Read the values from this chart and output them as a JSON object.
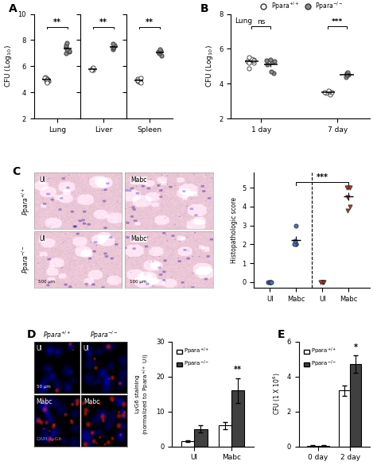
{
  "panel_A": {
    "ylabel": "CFU (Log$_{10}$)",
    "ylim": [
      2,
      10
    ],
    "yticks": [
      2,
      4,
      6,
      8,
      10
    ],
    "groups": [
      "Lung",
      "Liver",
      "Spleen"
    ],
    "wt_data": {
      "Lung": [
        4.85,
        4.9,
        5.0,
        5.05,
        5.1,
        5.15,
        5.1,
        4.95,
        5.0,
        4.75
      ],
      "Liver": [
        5.7,
        5.8,
        5.85,
        5.9,
        5.75
      ],
      "Spleen": [
        4.8,
        4.85,
        4.9,
        5.0,
        5.05,
        4.95,
        4.75,
        5.1
      ]
    },
    "ko_data": {
      "Lung": [
        7.0,
        7.1,
        7.2,
        7.3,
        7.5,
        7.6,
        7.8
      ],
      "Liver": [
        7.3,
        7.4,
        7.5,
        7.6,
        7.7
      ],
      "Spleen": [
        6.8,
        7.0,
        7.1,
        7.2,
        7.3
      ]
    },
    "sig": [
      "**",
      "**",
      "**"
    ],
    "legend_wt": "Ppara$^{+/+}$",
    "legend_ko": "Ppara$^{-/-}$"
  },
  "panel_B": {
    "ylabel": "CFU (Log$_{10}$)",
    "ylim": [
      2,
      8
    ],
    "yticks": [
      2,
      4,
      6,
      8
    ],
    "xlabel_inner": "Lung",
    "groups": [
      "1 day",
      "7 day"
    ],
    "wt_data": {
      "1 day": [
        5.2,
        5.3,
        5.35,
        5.4,
        5.45,
        5.5,
        5.2,
        5.35,
        4.9
      ],
      "7 day": [
        3.4,
        3.45,
        3.5,
        3.55,
        3.6,
        3.5
      ]
    },
    "ko_data": {
      "1 day": [
        5.1,
        5.25,
        5.3,
        5.35,
        5.4,
        4.6,
        4.7
      ],
      "7 day": [
        4.4,
        4.5,
        4.55,
        4.6,
        4.65,
        4.5
      ]
    },
    "sig": [
      "ns",
      "***"
    ],
    "legend_wt": "Ppara$^{+/+}$",
    "legend_ko": "Ppara$^{-/-}$"
  },
  "panel_C_scatter": {
    "ylabel": "Histopathologic score",
    "ylim": [
      -0.3,
      5.8
    ],
    "yticks": [
      0,
      1,
      2,
      3,
      4,
      5
    ],
    "wt_ui": [
      0,
      0,
      0,
      0,
      0
    ],
    "wt_mabc": [
      2.0,
      2.0,
      2.0,
      2.2,
      3.0
    ],
    "ko_ui": [
      0,
      0,
      0,
      0
    ],
    "ko_mabc": [
      3.8,
      4.0,
      4.5,
      5.0,
      5.0,
      5.0
    ],
    "wt_color": "#4472C4",
    "ko_color": "#C0392B",
    "sig_label": "***"
  },
  "panel_D_bar": {
    "groups": [
      "UI",
      "Mabc"
    ],
    "wt_values": [
      1.5,
      6.0
    ],
    "ko_values": [
      5.0,
      16.0
    ],
    "wt_err": [
      0.3,
      1.0
    ],
    "ko_err": [
      1.0,
      3.5
    ],
    "ylabel": "LyG6 staining\n(normalized to Ppara$^{+/+}$ UI)",
    "ylim": [
      0,
      30
    ],
    "yticks": [
      0,
      10,
      20,
      30
    ],
    "sig": [
      "",
      "**"
    ],
    "legend_wt": "Ppara$^{+/+}$",
    "legend_ko": "Ppara$^{-/-}$"
  },
  "panel_E": {
    "groups": [
      "0 day",
      "2 day"
    ],
    "wt_values": [
      0.05,
      3.2
    ],
    "ko_values": [
      0.05,
      4.7
    ],
    "wt_err": [
      0.02,
      0.3
    ],
    "ko_err": [
      0.02,
      0.5
    ],
    "ylabel": "CFU (1 X 10$^{6}$)",
    "ylim": [
      0,
      6
    ],
    "yticks": [
      0,
      2,
      4,
      6
    ],
    "sig": [
      "",
      "*"
    ],
    "legend_wt": "Ppara$^{+/+}$",
    "legend_ko": "Ppara$^{-/-}$"
  },
  "background_color": "#ffffff"
}
